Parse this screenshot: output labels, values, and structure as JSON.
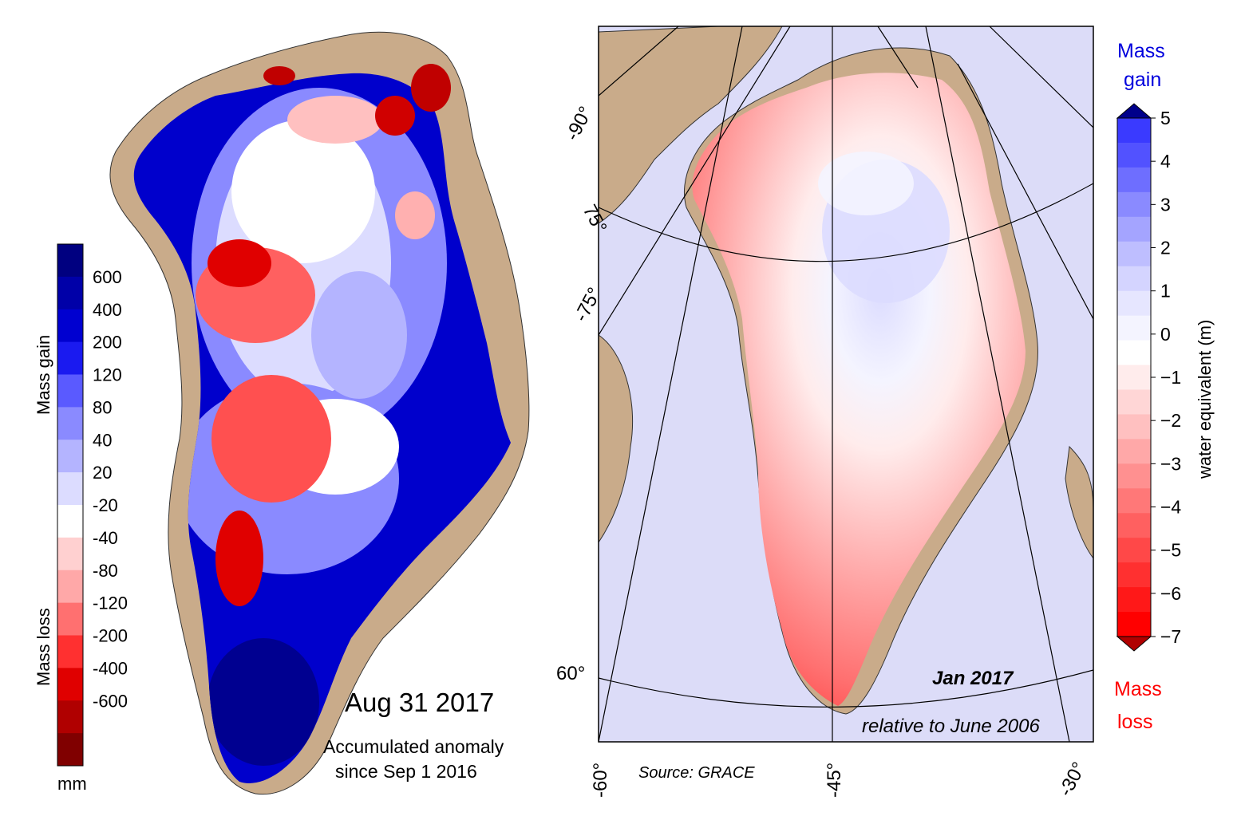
{
  "left_map": {
    "date": "Aug 31 2017",
    "subtitle_line1": "Accumulated anomaly",
    "subtitle_line2": "since Sep 1 2016",
    "colorbar": {
      "unit": "mm",
      "gain_label": "Mass gain",
      "loss_label": "Mass loss",
      "ticks": [
        "600",
        "400",
        "200",
        "120",
        "80",
        "40",
        "20",
        "-20",
        "-40",
        "-80",
        "-120",
        "-200",
        "-400",
        "-600"
      ],
      "colors": [
        "#000080",
        "#0000a8",
        "#0000d0",
        "#1a1af0",
        "#5a5aff",
        "#8a8aff",
        "#b4b4ff",
        "#dcdcff",
        "#ffffff",
        "#ffd0d0",
        "#ffa8a8",
        "#ff7070",
        "#ff3030",
        "#e00000",
        "#b00000",
        "#800000"
      ]
    }
  },
  "right_map": {
    "month": "Jan 2017",
    "relative": "relative to June 2006",
    "source": "Source: GRACE",
    "coords": {
      "lat_90": "-90°",
      "lat_75a": "75°",
      "lat_75b": "-75°",
      "lat_60": "60°",
      "lon_60": "-60°",
      "lon_45": "-45°",
      "lon_30": "-30°"
    },
    "colorbar": {
      "axis_title": "water equivalent (m)",
      "gain_line1": "Mass",
      "gain_line2": "gain",
      "loss_line1": "Mass",
      "loss_line2": "loss",
      "ticks": [
        "5",
        "4",
        "3",
        "2",
        "1",
        "0",
        "−1",
        "−2",
        "−3",
        "−4",
        "−5",
        "−6",
        "−7"
      ],
      "colors": [
        "#3a3aff",
        "#5252ff",
        "#6e6eff",
        "#8a8aff",
        "#a4a4ff",
        "#bebeff",
        "#d4d4ff",
        "#e6e6ff",
        "#f4f4ff",
        "#ffffff",
        "#ffecec",
        "#ffd6d6",
        "#ffc0c0",
        "#ffa8a8",
        "#ff9090",
        "#ff7878",
        "#ff6060",
        "#ff4848",
        "#ff3030",
        "#ff1818",
        "#ff0000"
      ]
    }
  }
}
